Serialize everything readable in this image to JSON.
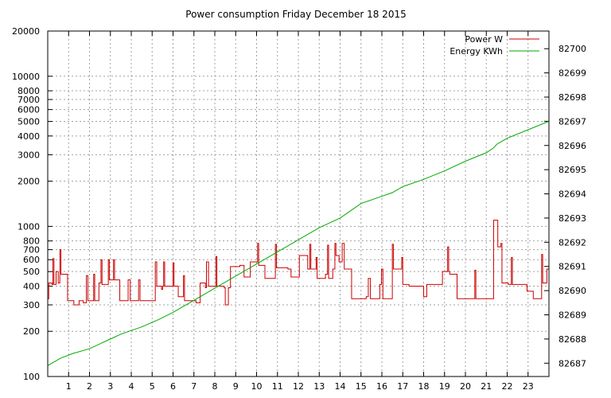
{
  "chart_data": {
    "type": "line",
    "title": "Power consumption Friday December 18 2015",
    "x_ticks": [
      "1",
      "2",
      "3",
      "4",
      "5",
      "6",
      "7",
      "8",
      "9",
      "10",
      "11",
      "12",
      "13",
      "14",
      "15",
      "16",
      "17",
      "18",
      "19",
      "20",
      "21",
      "22",
      "23"
    ],
    "xlim": [
      0,
      24
    ],
    "y_left": {
      "scale": "log",
      "ylim": [
        100,
        20000
      ],
      "ticks": [
        100,
        200,
        300,
        400,
        500,
        600,
        700,
        800,
        1000,
        2000,
        3000,
        4000,
        5000,
        6000,
        7000,
        8000,
        10000,
        20000
      ]
    },
    "y_right": {
      "ylim": [
        82686.45,
        82700.73
      ],
      "ticks": [
        82687,
        82688,
        82689,
        82690,
        82691,
        82692,
        82693,
        82694,
        82695,
        82696,
        82697,
        82698,
        82699,
        82700
      ]
    },
    "grid": true,
    "legend_position": "top-right",
    "series": [
      {
        "name": "Power W",
        "color": "#cc0000",
        "axis": "left",
        "step": true,
        "points": [
          [
            0.0,
            330
          ],
          [
            0.05,
            420
          ],
          [
            0.2,
            410
          ],
          [
            0.25,
            610
          ],
          [
            0.3,
            410
          ],
          [
            0.4,
            500
          ],
          [
            0.5,
            420
          ],
          [
            0.58,
            700
          ],
          [
            0.63,
            480
          ],
          [
            0.8,
            480
          ],
          [
            0.95,
            320
          ],
          [
            1.25,
            300
          ],
          [
            1.5,
            320
          ],
          [
            1.7,
            310
          ],
          [
            1.85,
            470
          ],
          [
            1.92,
            320
          ],
          [
            2.2,
            480
          ],
          [
            2.25,
            320
          ],
          [
            2.45,
            420
          ],
          [
            2.55,
            600
          ],
          [
            2.6,
            410
          ],
          [
            2.9,
            600
          ],
          [
            2.95,
            440
          ],
          [
            3.15,
            600
          ],
          [
            3.2,
            440
          ],
          [
            3.45,
            320
          ],
          [
            3.85,
            440
          ],
          [
            3.95,
            320
          ],
          [
            4.35,
            440
          ],
          [
            4.42,
            320
          ],
          [
            4.85,
            320
          ],
          [
            5.15,
            580
          ],
          [
            5.22,
            400
          ],
          [
            5.45,
            380
          ],
          [
            5.5,
            400
          ],
          [
            5.55,
            580
          ],
          [
            5.6,
            400
          ],
          [
            6.0,
            570
          ],
          [
            6.05,
            400
          ],
          [
            6.25,
            340
          ],
          [
            6.5,
            470
          ],
          [
            6.55,
            320
          ],
          [
            6.75,
            320
          ],
          [
            7.1,
            310
          ],
          [
            7.3,
            420
          ],
          [
            7.45,
            420
          ],
          [
            7.55,
            390
          ],
          [
            7.6,
            580
          ],
          [
            7.7,
            400
          ],
          [
            8.05,
            630
          ],
          [
            8.1,
            400
          ],
          [
            8.45,
            390
          ],
          [
            8.5,
            300
          ],
          [
            8.65,
            390
          ],
          [
            8.75,
            540
          ],
          [
            9.2,
            550
          ],
          [
            9.4,
            460
          ],
          [
            9.7,
            580
          ],
          [
            9.95,
            580
          ],
          [
            10.05,
            770
          ],
          [
            10.1,
            550
          ],
          [
            10.4,
            450
          ],
          [
            10.9,
            760
          ],
          [
            10.95,
            530
          ],
          [
            11.5,
            520
          ],
          [
            11.65,
            460
          ],
          [
            11.9,
            460
          ],
          [
            12.05,
            640
          ],
          [
            12.45,
            520
          ],
          [
            12.55,
            760
          ],
          [
            12.6,
            520
          ],
          [
            12.85,
            620
          ],
          [
            12.9,
            450
          ],
          [
            13.3,
            480
          ],
          [
            13.4,
            750
          ],
          [
            13.45,
            450
          ],
          [
            13.6,
            450
          ],
          [
            13.65,
            520
          ],
          [
            13.75,
            770
          ],
          [
            13.8,
            640
          ],
          [
            13.95,
            580
          ],
          [
            14.1,
            770
          ],
          [
            14.2,
            520
          ],
          [
            14.45,
            520
          ],
          [
            14.55,
            330
          ],
          [
            15.25,
            340
          ],
          [
            15.35,
            450
          ],
          [
            15.45,
            330
          ],
          [
            15.8,
            330
          ],
          [
            15.9,
            410
          ],
          [
            15.98,
            520
          ],
          [
            16.05,
            330
          ],
          [
            16.45,
            330
          ],
          [
            16.5,
            760
          ],
          [
            16.55,
            520
          ],
          [
            16.9,
            520
          ],
          [
            16.95,
            620
          ],
          [
            17.0,
            410
          ],
          [
            17.3,
            400
          ],
          [
            17.95,
            400
          ],
          [
            18.0,
            340
          ],
          [
            18.15,
            410
          ],
          [
            18.9,
            500
          ],
          [
            19.15,
            730
          ],
          [
            19.2,
            500
          ],
          [
            19.25,
            480
          ],
          [
            19.5,
            480
          ],
          [
            19.6,
            330
          ],
          [
            20.1,
            330
          ],
          [
            20.35,
            330
          ],
          [
            20.45,
            510
          ],
          [
            20.5,
            330
          ],
          [
            20.95,
            330
          ],
          [
            21.35,
            1100
          ],
          [
            21.55,
            730
          ],
          [
            21.7,
            770
          ],
          [
            21.75,
            420
          ],
          [
            22.05,
            410
          ],
          [
            22.2,
            620
          ],
          [
            22.25,
            410
          ],
          [
            22.35,
            410
          ],
          [
            22.75,
            410
          ],
          [
            22.95,
            370
          ],
          [
            23.25,
            330
          ],
          [
            23.5,
            330
          ],
          [
            23.65,
            650
          ],
          [
            23.7,
            420
          ],
          [
            23.85,
            420
          ],
          [
            23.9,
            520
          ],
          [
            24.0,
            520
          ]
        ]
      },
      {
        "name": "Energy KWh",
        "color": "#00aa00",
        "axis": "right",
        "step": false,
        "points": [
          [
            0.0,
            82686.9
          ],
          [
            0.6,
            82687.2
          ],
          [
            1.2,
            82687.4
          ],
          [
            2.0,
            82687.6
          ],
          [
            3.0,
            82688.0
          ],
          [
            3.5,
            82688.2
          ],
          [
            4.5,
            82688.5
          ],
          [
            5.3,
            82688.8
          ],
          [
            6.0,
            82689.1
          ],
          [
            7.0,
            82689.6
          ],
          [
            8.0,
            82690.1
          ],
          [
            9.0,
            82690.6
          ],
          [
            10.0,
            82691.1
          ],
          [
            11.0,
            82691.6
          ],
          [
            12.0,
            82692.1
          ],
          [
            13.0,
            82692.6
          ],
          [
            14.0,
            82693.0
          ],
          [
            14.5,
            82693.3
          ],
          [
            15.0,
            82693.6
          ],
          [
            16.0,
            82693.9
          ],
          [
            16.5,
            82694.05
          ],
          [
            17.0,
            82694.3
          ],
          [
            18.0,
            82694.6
          ],
          [
            19.0,
            82694.95
          ],
          [
            20.0,
            82695.35
          ],
          [
            21.0,
            82695.7
          ],
          [
            21.35,
            82695.9
          ],
          [
            21.5,
            82696.05
          ],
          [
            22.0,
            82696.3
          ],
          [
            23.0,
            82696.65
          ],
          [
            24.0,
            82697.0
          ]
        ]
      }
    ]
  }
}
